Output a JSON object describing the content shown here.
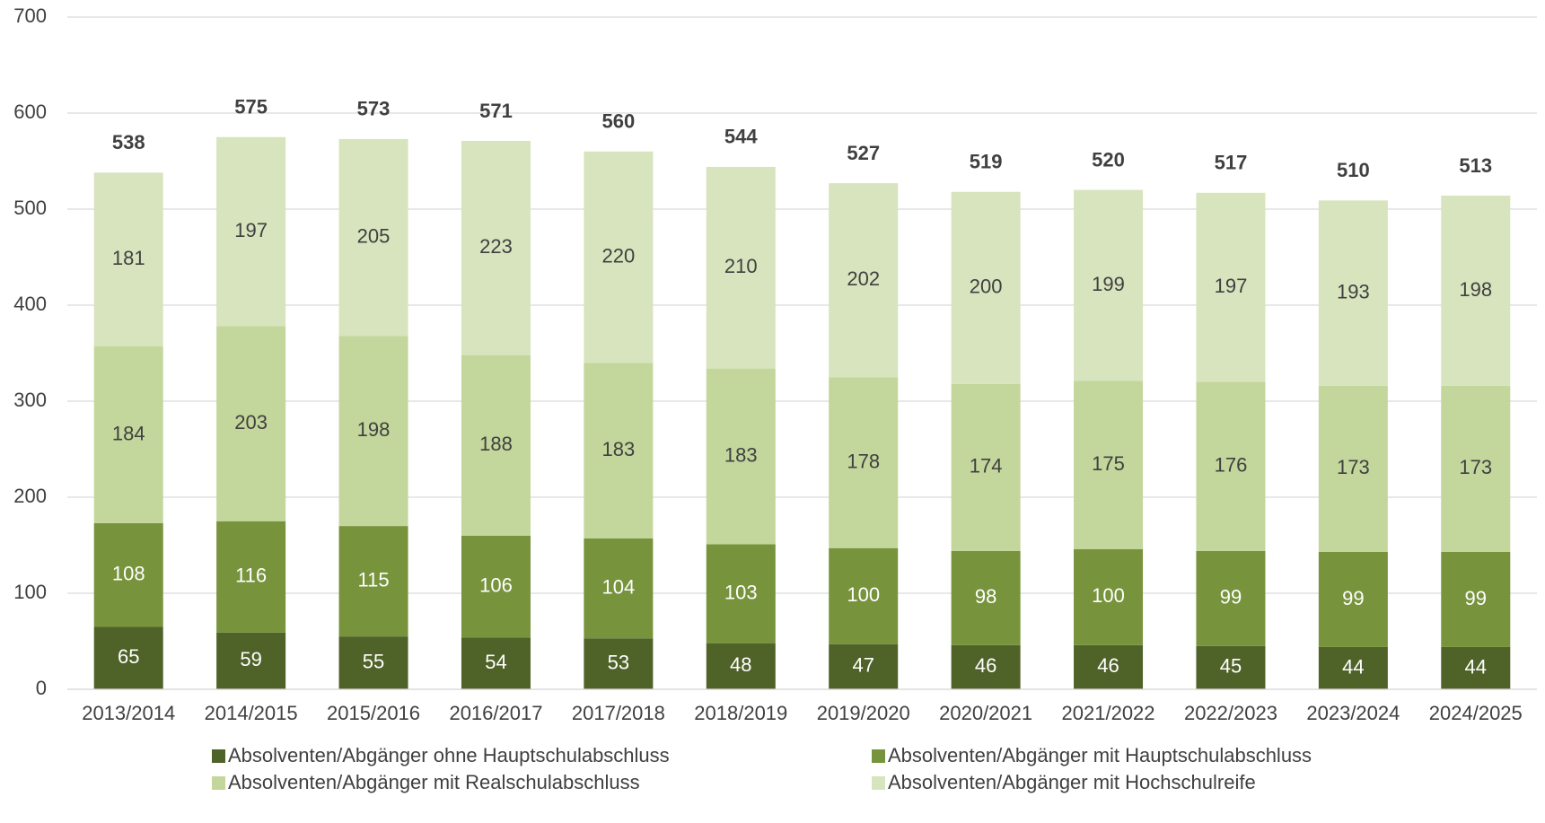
{
  "chart_data": {
    "type": "stacked_bar",
    "categories": [
      "2013/2014",
      "2014/2015",
      "2015/2016",
      "2016/2017",
      "2017/2018",
      "2018/2019",
      "2019/2020",
      "2020/2021",
      "2021/2022",
      "2022/2023",
      "2023/2024",
      "2024/2025"
    ],
    "series": [
      {
        "name": "Absolventen/Abgänger ohne Hauptschulabschluss",
        "color": "#4f6228",
        "values": [
          65,
          59,
          55,
          54,
          53,
          48,
          47,
          46,
          46,
          45,
          44,
          44
        ]
      },
      {
        "name": "Absolventen/Abgänger mit Hauptschulabschluss",
        "color": "#77933c",
        "values": [
          108,
          116,
          115,
          106,
          104,
          103,
          100,
          98,
          100,
          99,
          99,
          99
        ]
      },
      {
        "name": "Absolventen/Abgänger mit Realschulabschluss",
        "color": "#c3d69b",
        "values": [
          184,
          203,
          198,
          188,
          183,
          183,
          178,
          174,
          175,
          176,
          173,
          173
        ]
      },
      {
        "name": "Absolventen/Abgänger mit Hochschulreife",
        "color": "#d7e4bd",
        "values": [
          181,
          197,
          205,
          223,
          220,
          210,
          202,
          200,
          199,
          197,
          193,
          198
        ]
      }
    ],
    "totals": [
      538,
      575,
      573,
      571,
      560,
      544,
      527,
      519,
      520,
      517,
      510,
      513
    ],
    "ylim": [
      0,
      700
    ],
    "yticks": [
      0,
      100,
      200,
      300,
      400,
      500,
      600,
      700
    ],
    "grid": true,
    "legend": "bottom"
  }
}
